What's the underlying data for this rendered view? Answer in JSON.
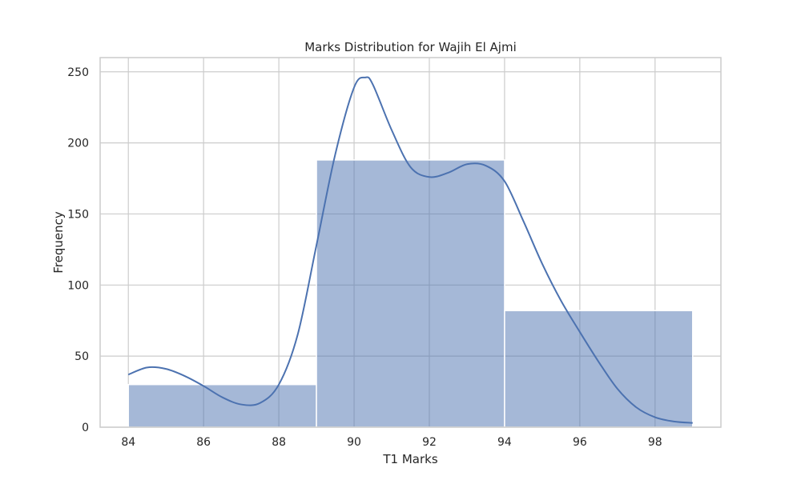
{
  "chart_data": {
    "type": "histogram",
    "title": "Marks Distribution for Wajih El Ajmi",
    "xlabel": "T1 Marks",
    "ylabel": "Frequency",
    "xlim": [
      83.25,
      99.75
    ],
    "ylim": [
      0,
      260
    ],
    "xticks": [
      84,
      86,
      88,
      90,
      92,
      94,
      96,
      98
    ],
    "yticks": [
      0,
      50,
      100,
      150,
      200,
      250
    ],
    "grid": true,
    "bins": [
      {
        "start": 84,
        "end": 89,
        "count": 30
      },
      {
        "start": 89,
        "end": 94,
        "count": 188
      },
      {
        "start": 94,
        "end": 99,
        "count": 82
      }
    ],
    "kde": {
      "x": [
        84,
        84.5,
        85,
        85.5,
        86,
        86.5,
        87,
        87.5,
        88,
        88.5,
        89,
        89.5,
        90,
        90.3,
        90.5,
        91,
        91.5,
        92,
        92.5,
        93,
        93.5,
        94,
        94.5,
        95,
        95.5,
        96,
        96.5,
        97,
        97.5,
        98,
        98.5,
        99
      ],
      "y": [
        37,
        42,
        41,
        36,
        29,
        21,
        16,
        17,
        30,
        65,
        128,
        192,
        239,
        246,
        241,
        209,
        183,
        176,
        179,
        185,
        184,
        173,
        145,
        115,
        89,
        67,
        46,
        27,
        14,
        7,
        4,
        3
      ]
    },
    "colors": {
      "bar_fill": "#4c72b0",
      "bar_opacity": 0.5,
      "line": "#4c72b0",
      "grid": "#cccccc",
      "frame": "#cccccc"
    }
  }
}
